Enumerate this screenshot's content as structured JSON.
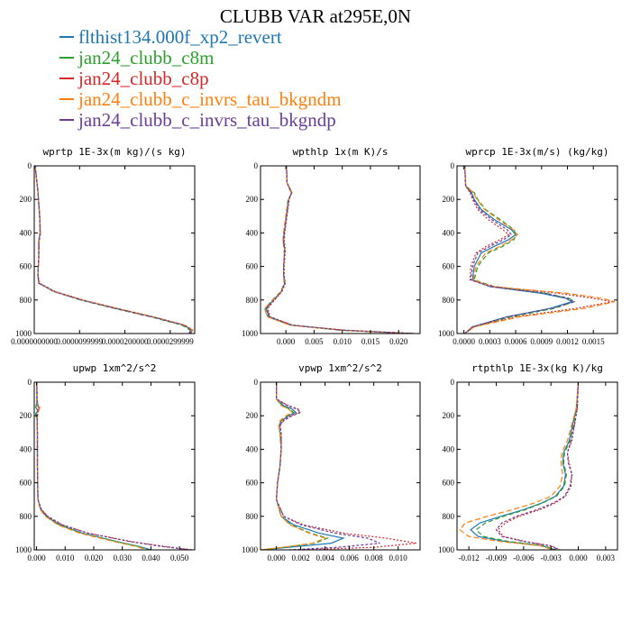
{
  "title": "CLUBB VAR at295E,0N",
  "legend": [
    {
      "name": "flthist134.000f_xp2_revert",
      "color": "#1f77b4"
    },
    {
      "name": "jan24_clubb_c8m",
      "color": "#2ca02c"
    },
    {
      "name": "jan24_clubb_c8p",
      "color": "#d62728"
    },
    {
      "name": "jan24_clubb_c_invrs_tau_bkgndm",
      "color": "#ff7f0e"
    },
    {
      "name": "jan24_clubb_c_invrs_tau_bkgndp",
      "color": "#6a3d9a"
    }
  ],
  "chart_data": [
    {
      "type": "line",
      "title": "wprtp  1E-3x(m kg)/(s kg)",
      "xlim": [
        0,
        3.54e-05
      ],
      "ylim": [
        1000,
        0
      ],
      "xticks": [
        "0.0000000000",
        "0.0000099999",
        "0.0000200000",
        "0.0000299999"
      ],
      "xtick_values": [
        0,
        1e-05,
        2e-05,
        3e-05
      ],
      "yticks": [
        "0",
        "200",
        "400",
        "600",
        "800",
        "1000"
      ],
      "y": [
        0,
        150,
        300,
        400,
        450,
        550,
        650,
        700,
        750,
        800,
        850,
        900,
        950,
        980,
        1000
      ],
      "series": [
        {
          "values": [
            2e-07,
            8e-07,
            1.2e-06,
            1.3e-06,
            1e-06,
            1e-06,
            8e-07,
            1e-06,
            4.5e-06,
            1.05e-05,
            1.8e-05,
            2.6e-05,
            3.3e-05,
            3.48e-05,
            3.42e-05
          ]
        },
        {
          "values": [
            2e-07,
            8e-07,
            1.2e-06,
            1.3e-06,
            1e-06,
            1e-06,
            8e-07,
            1e-06,
            4.3e-06,
            1.02e-05,
            1.76e-05,
            2.56e-05,
            3.26e-05,
            3.44e-05,
            3.4e-05
          ]
        },
        {
          "values": [
            2e-07,
            8e-07,
            1.2e-06,
            1.4e-06,
            1.1e-06,
            1e-06,
            8e-07,
            1.2e-06,
            4.7e-06,
            1.08e-05,
            1.83e-05,
            2.63e-05,
            3.33e-05,
            3.5e-05,
            3.45e-05
          ]
        },
        {
          "values": [
            2e-07,
            8e-07,
            1.2e-06,
            1.4e-06,
            1.1e-06,
            1e-06,
            8e-07,
            1e-06,
            4.5e-06,
            1.06e-05,
            1.82e-05,
            2.62e-05,
            3.32e-05,
            3.5e-05,
            3.45e-05
          ]
        },
        {
          "values": [
            2e-07,
            8e-07,
            1.2e-06,
            1.3e-06,
            1e-06,
            1e-06,
            8e-07,
            1e-06,
            4.4e-06,
            1.04e-05,
            1.79e-05,
            2.59e-05,
            3.3e-05,
            3.46e-05,
            3.41e-05
          ]
        }
      ]
    },
    {
      "type": "line",
      "title": "wpthlp  1x(m K)/s",
      "xlim": [
        -0.0045,
        0.0238
      ],
      "ylim": [
        1000,
        0
      ],
      "xticks": [
        "0.000",
        "0.005",
        "0.010",
        "0.015",
        "0.020"
      ],
      "xtick_values": [
        0,
        0.005,
        0.01,
        0.015,
        0.02
      ],
      "yticks": [
        "0",
        "200",
        "400",
        "600",
        "800",
        "1000"
      ],
      "y": [
        0,
        100,
        140,
        160,
        200,
        300,
        400,
        450,
        500,
        550,
        600,
        650,
        700,
        750,
        800,
        850,
        900,
        950,
        980,
        1000
      ],
      "series": [
        {
          "values": [
            0.0001,
            0.0002,
            0.0007,
            0.001,
            0.0005,
            0.0001,
            -0.0003,
            -0.0004,
            -0.0002,
            -0.0003,
            -0.0004,
            -0.0004,
            -0.0002,
            -0.0008,
            -0.0022,
            -0.0035,
            -0.003,
            0.001,
            0.01,
            0.0225
          ]
        },
        {
          "values": [
            0.0001,
            0.0002,
            0.0008,
            0.0011,
            0.0004,
            0.0,
            -0.0004,
            -0.0005,
            -0.0003,
            -0.0003,
            -0.0004,
            -0.0004,
            -0.0003,
            -0.0009,
            -0.0024,
            -0.0037,
            -0.0032,
            0.0008,
            0.0095,
            0.022
          ]
        },
        {
          "values": [
            0.0001,
            0.0002,
            0.0007,
            0.001,
            0.0006,
            0.0002,
            -0.0002,
            -0.0003,
            -0.0001,
            -0.0002,
            -0.0003,
            -0.0003,
            -0.0001,
            -0.0007,
            -0.002,
            -0.0032,
            -0.0028,
            0.0012,
            0.0105,
            0.0228
          ]
        },
        {
          "values": [
            0.0001,
            0.0002,
            0.0008,
            0.0011,
            0.0005,
            0.0,
            -0.0004,
            -0.0005,
            -0.0002,
            -0.0003,
            -0.0004,
            -0.0004,
            -0.0002,
            -0.0008,
            -0.0023,
            -0.0038,
            -0.0033,
            0.0007,
            0.0098,
            0.0222
          ]
        },
        {
          "values": [
            0.0001,
            0.0002,
            0.0007,
            0.001,
            0.0005,
            0.0001,
            -0.0003,
            -0.0004,
            -0.0002,
            -0.0003,
            -0.0004,
            -0.0004,
            -0.0002,
            -0.0008,
            -0.0021,
            -0.0034,
            -0.0029,
            0.0011,
            0.0102,
            0.0226
          ]
        }
      ]
    },
    {
      "type": "line",
      "title": "wprcp  1E-3x(m/s) (kg/kg)",
      "xlim": [
        -8e-05,
        0.00178
      ],
      "ylim": [
        1000,
        0
      ],
      "xticks": [
        "0.0000",
        "0.0003",
        "0.0006",
        "0.0009",
        "0.0012",
        "0.0015"
      ],
      "xtick_values": [
        0,
        0.0003,
        0.0006,
        0.0009,
        0.0012,
        0.0015
      ],
      "yticks": [
        "0",
        "200",
        "400",
        "600",
        "800",
        "1000"
      ],
      "y": [
        0,
        120,
        160,
        200,
        260,
        320,
        380,
        410,
        440,
        480,
        520,
        600,
        680,
        720,
        760,
        790,
        810,
        850,
        900,
        960,
        1000
      ],
      "series": [
        {
          "values": [
            1e-05,
            2e-05,
            9e-05,
            0.00012,
            0.0002,
            0.00035,
            0.00055,
            0.0006,
            0.00052,
            0.00035,
            0.0002,
            0.00012,
            0.0001,
            0.0003,
            0.0009,
            0.00118,
            0.00125,
            0.001,
            0.0005,
            0.0001,
            1e-05
          ]
        },
        {
          "values": [
            1e-05,
            2e-05,
            0.00012,
            0.00016,
            0.00025,
            0.00042,
            0.00058,
            0.0006,
            0.00058,
            0.00045,
            0.00028,
            0.00016,
            0.00012,
            0.00035,
            0.00095,
            0.00122,
            0.00128,
            0.00105,
            0.00055,
            0.00012,
            1e-05
          ]
        },
        {
          "values": [
            1e-05,
            2e-05,
            7e-05,
            0.0001,
            0.00016,
            0.00028,
            0.00045,
            0.00052,
            0.00042,
            0.00026,
            0.00014,
            8e-05,
            7e-05,
            0.00035,
            0.0011,
            0.0015,
            0.00172,
            0.0013,
            0.0006,
            0.0001,
            1e-05
          ]
        },
        {
          "values": [
            1e-05,
            2e-05,
            0.00011,
            0.00015,
            0.00024,
            0.0004,
            0.00057,
            0.00062,
            0.00056,
            0.00042,
            0.00025,
            0.00014,
            0.00011,
            0.00032,
            0.0012,
            0.0016,
            0.00175,
            0.0014,
            0.00065,
            0.00012,
            1e-05
          ]
        },
        {
          "values": [
            1e-05,
            2e-05,
            8e-05,
            0.00011,
            0.00018,
            0.00032,
            0.0005,
            0.00055,
            0.00046,
            0.0003,
            0.00016,
            0.0001,
            8e-05,
            0.0003,
            0.00095,
            0.0012,
            0.00128,
            0.00102,
            0.0005,
            0.0001,
            1e-05
          ]
        }
      ]
    },
    {
      "type": "line",
      "title": "upwp  1xm^2/s^2",
      "xlim": [
        -0.0008,
        0.0553
      ],
      "ylim": [
        1000,
        0
      ],
      "xticks": [
        "0.000",
        "0.010",
        "0.020",
        "0.030",
        "0.040",
        "0.050"
      ],
      "xtick_values": [
        0,
        0.01,
        0.02,
        0.03,
        0.04,
        0.05
      ],
      "yticks": [
        "0",
        "200",
        "400",
        "600",
        "800",
        "1000"
      ],
      "y": [
        0,
        120,
        150,
        170,
        190,
        220,
        300,
        500,
        700,
        760,
        800,
        850,
        900,
        950,
        980,
        1000
      ],
      "series": [
        {
          "values": [
            0.0001,
            0.0001,
            -0.0002,
            0.0004,
            -0.0003,
            0.0002,
            0.0003,
            0.0003,
            0.0005,
            0.0015,
            0.0035,
            0.008,
            0.016,
            0.028,
            0.036,
            0.04
          ]
        },
        {
          "values": [
            0.0001,
            0.0001,
            -0.0003,
            0.0005,
            -0.0004,
            0.0002,
            0.0003,
            0.0003,
            0.0005,
            0.0014,
            0.0033,
            0.0078,
            0.0158,
            0.0278,
            0.0358,
            0.0395
          ]
        },
        {
          "values": [
            0.0001,
            0.0002,
            0.0008,
            0.0006,
            0.0004,
            0.0002,
            0.0003,
            0.0003,
            0.0005,
            0.0018,
            0.004,
            0.009,
            0.018,
            0.033,
            0.045,
            0.0545
          ]
        },
        {
          "values": [
            0.0001,
            0.0003,
            0.0012,
            0.0008,
            0.0005,
            0.0002,
            0.0003,
            0.0003,
            0.0005,
            0.0013,
            0.0031,
            0.0074,
            0.015,
            0.027,
            0.035,
            0.0385
          ]
        },
        {
          "values": [
            0.0001,
            0.0002,
            0.0006,
            0.0004,
            0.0002,
            0.0002,
            0.0003,
            0.0003,
            0.0005,
            0.0017,
            0.0038,
            0.0088,
            0.0178,
            0.0325,
            0.044,
            0.054
          ]
        }
      ]
    },
    {
      "type": "line",
      "title": "vpwp  1xm^2/s^2",
      "xlim": [
        -0.0013,
        0.0118
      ],
      "ylim": [
        1000,
        0
      ],
      "xticks": [
        "0.000",
        "0.002",
        "0.004",
        "0.006",
        "0.008",
        "0.010"
      ],
      "xtick_values": [
        0,
        0.002,
        0.004,
        0.006,
        0.008,
        0.01
      ],
      "yticks": [
        "0",
        "200",
        "400",
        "600",
        "800",
        "1000"
      ],
      "y": [
        0,
        100,
        140,
        160,
        180,
        200,
        230,
        260,
        300,
        400,
        500,
        600,
        700,
        800,
        850,
        900,
        930,
        960,
        985,
        1000
      ],
      "series": [
        {
          "values": [
            0.0,
            0.0,
            0.0006,
            0.0013,
            0.0016,
            0.001,
            0.0004,
            0.0002,
            0.0003,
            0.0004,
            0.0003,
            0.0001,
            0.0,
            0.0004,
            0.0014,
            0.0035,
            0.0055,
            0.0045,
            0.001,
            -0.0012
          ]
        },
        {
          "values": [
            0.0,
            0.0,
            0.0005,
            0.0011,
            0.0014,
            0.0009,
            0.0004,
            0.0002,
            0.0003,
            0.0004,
            0.0003,
            0.0001,
            0.0,
            0.0004,
            0.0012,
            0.0028,
            0.0042,
            0.0032,
            0.0006,
            -0.0013
          ]
        },
        {
          "values": [
            0.0,
            0.0,
            0.001,
            0.0018,
            0.0019,
            0.0012,
            0.0005,
            0.0003,
            0.0004,
            0.0004,
            0.0003,
            0.0001,
            0.0,
            0.0006,
            0.0022,
            0.0055,
            0.009,
            0.0115,
            0.008,
            0.002
          ]
        },
        {
          "values": [
            0.0,
            0.0,
            0.0004,
            0.001,
            0.0013,
            0.0008,
            0.0003,
            0.0002,
            0.0003,
            0.0004,
            0.0003,
            0.0001,
            0.0,
            0.0004,
            0.0011,
            0.0027,
            0.004,
            0.003,
            0.0005,
            -0.0013
          ]
        },
        {
          "values": [
            0.0,
            0.0,
            0.0009,
            0.0017,
            0.002,
            0.0013,
            0.0006,
            0.0003,
            0.0004,
            0.0004,
            0.0003,
            0.0001,
            0.0,
            0.0006,
            0.002,
            0.0048,
            0.0075,
            0.0085,
            0.005,
            0.001
          ]
        }
      ]
    },
    {
      "type": "line",
      "title": "rtpthlp  1E-3x(kg K)/kg",
      "xlim": [
        -0.0133,
        0.0043
      ],
      "ylim": [
        1000,
        0
      ],
      "xticks": [
        "-0.012",
        "-0.009",
        "-0.006",
        "-0.003",
        "0.000",
        "0.003"
      ],
      "xtick_values": [
        -0.012,
        -0.009,
        -0.006,
        -0.003,
        0,
        0.003
      ],
      "yticks": [
        "0",
        "200",
        "400",
        "600",
        "800",
        "1000"
      ],
      "y": [
        0,
        150,
        250,
        350,
        420,
        480,
        550,
        620,
        680,
        720,
        760,
        800,
        840,
        880,
        920,
        950,
        975,
        1000
      ],
      "series": [
        {
          "values": [
            0.0,
            -0.0002,
            -0.0006,
            -0.001,
            -0.0016,
            -0.0017,
            -0.0014,
            -0.0016,
            -0.0025,
            -0.004,
            -0.006,
            -0.0085,
            -0.0108,
            -0.0118,
            -0.011,
            -0.008,
            -0.004,
            -0.0025
          ]
        },
        {
          "values": [
            0.0,
            -0.0002,
            -0.0005,
            -0.0009,
            -0.0015,
            -0.0016,
            -0.0013,
            -0.0015,
            -0.0024,
            -0.0039,
            -0.0058,
            -0.0082,
            -0.0102,
            -0.0112,
            -0.0104,
            -0.0076,
            -0.0038,
            -0.0024
          ]
        },
        {
          "values": [
            0.0,
            -0.0001,
            -0.0004,
            -0.0007,
            -0.0012,
            -0.001,
            -0.0007,
            -0.0008,
            -0.0014,
            -0.0025,
            -0.0042,
            -0.0065,
            -0.008,
            -0.0088,
            -0.0082,
            -0.0058,
            -0.003,
            -0.002
          ]
        },
        {
          "values": [
            0.0,
            -0.0002,
            -0.0007,
            -0.0012,
            -0.0018,
            -0.0019,
            -0.0017,
            -0.002,
            -0.003,
            -0.0048,
            -0.0072,
            -0.01,
            -0.0124,
            -0.013,
            -0.012,
            -0.0086,
            -0.0042,
            -0.0027
          ]
        },
        {
          "values": [
            0.0,
            -0.0001,
            -0.0004,
            -0.0008,
            -0.0012,
            -0.0011,
            -0.0007,
            -0.0009,
            -0.0015,
            -0.0027,
            -0.0045,
            -0.0068,
            -0.0084,
            -0.009,
            -0.0084,
            -0.006,
            -0.0031,
            -0.0021
          ]
        }
      ]
    }
  ]
}
